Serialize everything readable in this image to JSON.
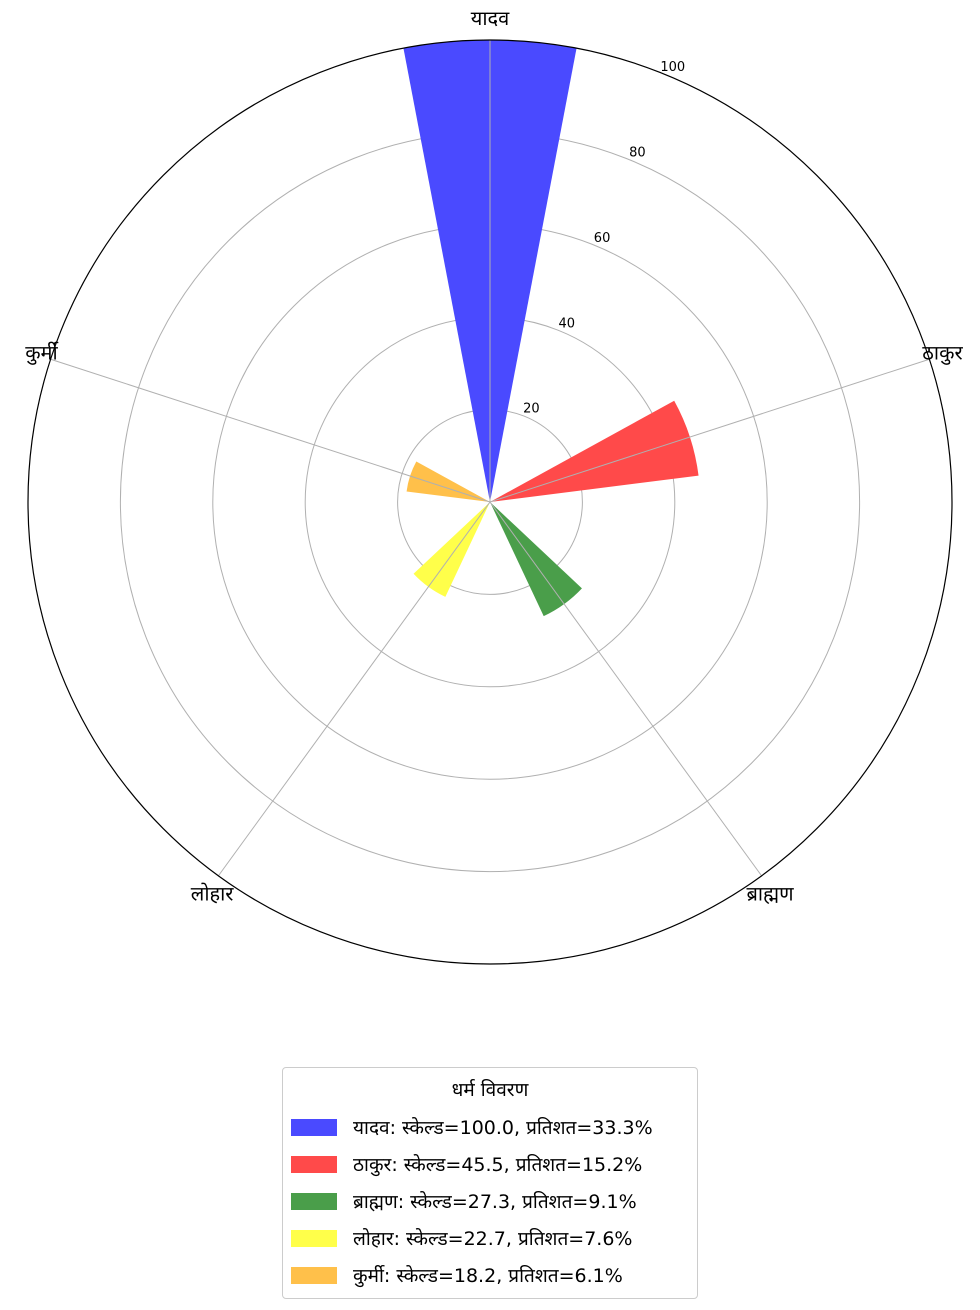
{
  "chart_data": {
    "type": "polar-bar",
    "categories": [
      "यादव",
      "ठाकुर",
      "ब्राह्मण",
      "लोहार",
      "कुर्मी"
    ],
    "values": [
      100.0,
      45.5,
      27.3,
      22.7,
      18.2
    ],
    "colors": [
      "#4a4aff",
      "#ff4a4a",
      "#4a9e4a",
      "#ffff4a",
      "#ffc04a"
    ],
    "rlim": [
      0,
      100
    ],
    "rticks": [
      "20",
      "40",
      "60",
      "80",
      "100"
    ],
    "grid": true,
    "legend": {
      "title": "धर्म विवरण",
      "placement": "bottom-center",
      "entries": [
        "यादव: स्केल्ड=100.0, प्रतिशत=33.3%",
        "ठाकुर: स्केल्ड=45.5, प्रतिशत=15.2%",
        "ब्राह्मण: स्केल्ड=27.3, प्रतिशत=9.1%",
        "लोहार: स्केल्ड=22.7, प्रतिशत=7.6%",
        "कुर्मी: स्केल्ड=18.2, प्रतिशत=6.1%"
      ]
    }
  }
}
